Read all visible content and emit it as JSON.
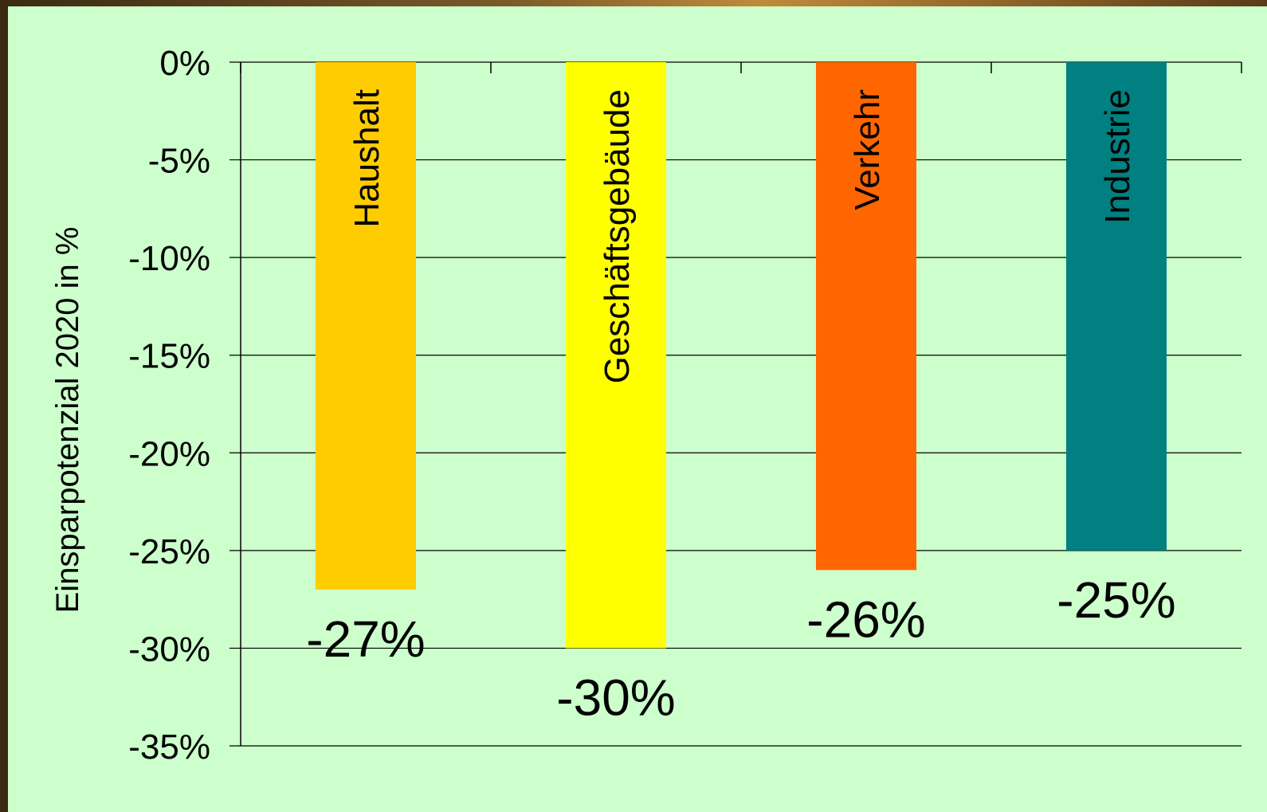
{
  "chart_data": {
    "type": "bar",
    "categories": [
      "Haushalt",
      "Geschäftsgebäude",
      "Verkehr",
      "Industrie"
    ],
    "values": [
      -27,
      -30,
      -26,
      -25
    ],
    "data_labels": [
      "-27%",
      "-30%",
      "-26%",
      "-25%"
    ],
    "colors": [
      "#ffcc00",
      "#ffff00",
      "#ff6600",
      "#008080"
    ],
    "ylabel": "Einsparpotenzial 2020 in %",
    "ylim": [
      -35,
      0
    ],
    "yticks": [
      0,
      -5,
      -10,
      -15,
      -20,
      -25,
      -30,
      -35
    ],
    "ytick_labels": [
      "0%",
      "-5%",
      "-10%",
      "-15%",
      "-20%",
      "-25%",
      "-30%",
      "-35%"
    ],
    "grid": true,
    "legend": "none"
  }
}
